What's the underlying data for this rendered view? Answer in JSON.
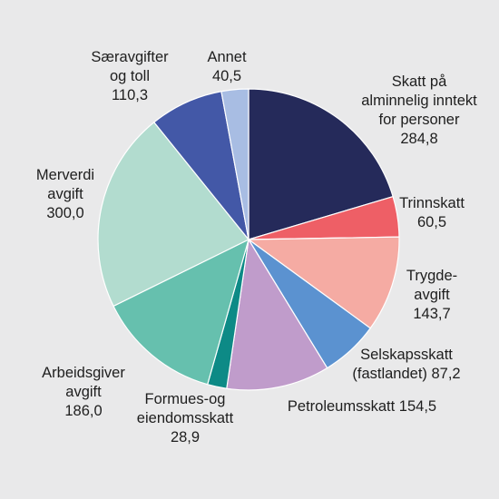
{
  "chart_data": {
    "type": "pie",
    "title": "",
    "start_angle_deg": 0,
    "direction": "clockwise",
    "slices": [
      {
        "label_lines": [
          "Skatt på",
          "alminnelig inntekt",
          "for personer"
        ],
        "value_text": "284,8",
        "value": 284.8,
        "color": "#252a5a"
      },
      {
        "label_lines": [
          "Trinnskatt"
        ],
        "value_text": "60,5",
        "value": 60.5,
        "color": "#ee5f66"
      },
      {
        "label_lines": [
          "Trygde-",
          "avgift"
        ],
        "value_text": "143,7",
        "value": 143.7,
        "color": "#f5aba3"
      },
      {
        "label_lines": [
          "Selskapsskatt"
        ],
        "value_text": "(fastlandet) 87,2",
        "value": 87.2,
        "color": "#5b92d0"
      },
      {
        "label_lines": [],
        "value_text": "Petroleumsskatt 154,5",
        "value": 154.5,
        "color": "#c09ccb"
      },
      {
        "label_lines": [
          "Formues-og",
          "eiendomsskatt"
        ],
        "value_text": "28,9",
        "value": 28.9,
        "color": "#0d8a86"
      },
      {
        "label_lines": [
          "Arbeidsgiver",
          "avgift"
        ],
        "value_text": "186,0",
        "value": 186.0,
        "color": "#66c0ae"
      },
      {
        "label_lines": [
          "Merverdi",
          "avgift"
        ],
        "value_text": "300,0",
        "value": 300.0,
        "color": "#b2dccf"
      },
      {
        "label_lines": [
          "Særavgifter",
          "og toll"
        ],
        "value_text": "110,3",
        "value": 110.3,
        "color": "#4358a7"
      },
      {
        "label_lines": [
          "Annet"
        ],
        "value_text": "40,5",
        "value": 40.5,
        "color": "#a8bde3"
      }
    ]
  }
}
